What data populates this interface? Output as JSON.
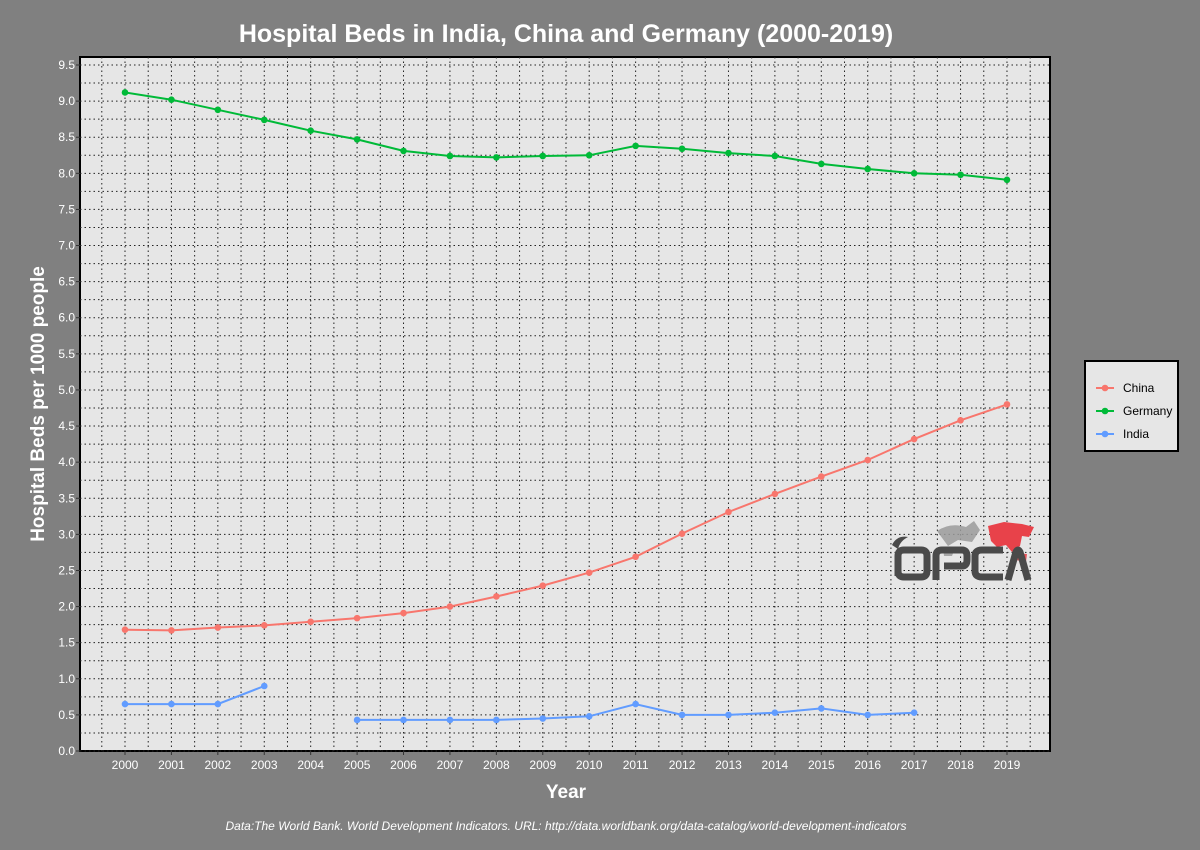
{
  "chart_data": {
    "type": "line",
    "title": "Hospital Beds in India, China and Germany (2000-2019)",
    "xlabel": "Year",
    "ylabel": "Hospital Beds per 1000 people",
    "categories": [
      "2000",
      "2001",
      "2002",
      "2003",
      "2004",
      "2005",
      "2006",
      "2007",
      "2008",
      "2009",
      "2010",
      "2011",
      "2012",
      "2013",
      "2014",
      "2015",
      "2016",
      "2017",
      "2018",
      "2019"
    ],
    "ylim": [
      0,
      9.5
    ],
    "yticks": [
      "0.0",
      "0.5",
      "1.0",
      "1.5",
      "2.0",
      "2.5",
      "3.0",
      "3.5",
      "4.0",
      "4.5",
      "5.0",
      "5.5",
      "6.0",
      "6.5",
      "7.0",
      "7.5",
      "8.0",
      "8.5",
      "9.0",
      "9.5"
    ],
    "grid": true,
    "legend_position": "right",
    "series": [
      {
        "name": "China",
        "color": "#F8766D",
        "values": [
          1.68,
          1.67,
          1.71,
          1.74,
          1.79,
          1.84,
          1.91,
          2.0,
          2.14,
          2.29,
          2.47,
          2.69,
          3.01,
          3.31,
          3.56,
          3.8,
          4.03,
          4.32,
          4.58,
          4.8
        ]
      },
      {
        "name": "Germany",
        "color": "#00BA38",
        "values": [
          9.12,
          9.02,
          8.88,
          8.74,
          8.59,
          8.47,
          8.31,
          8.24,
          8.22,
          8.24,
          8.25,
          8.38,
          8.34,
          8.28,
          8.24,
          8.13,
          8.06,
          8.0,
          7.98,
          7.91
        ]
      },
      {
        "name": "India",
        "color": "#619CFF",
        "values": [
          0.65,
          0.65,
          0.65,
          0.9,
          null,
          0.43,
          0.43,
          0.43,
          0.43,
          0.45,
          0.48,
          0.65,
          0.5,
          0.5,
          0.53,
          0.59,
          0.5,
          0.53,
          null,
          null
        ]
      }
    ]
  },
  "caption": "Data:The World Bank. World Development Indicators. URL: http://data.worldbank.org/data-catalog/world-development-indicators",
  "logo": {
    "text": "ORCA",
    "accent_color": "#E8424A",
    "text_color": "#4A4A4A"
  }
}
